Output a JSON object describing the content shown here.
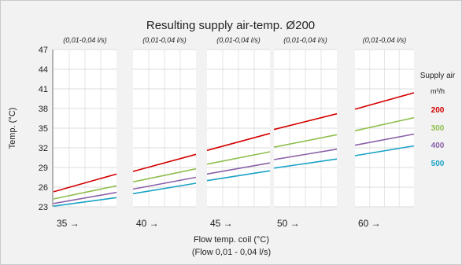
{
  "chart_data": {
    "type": "line",
    "title": "Resulting supply air-temp. Ø200",
    "ylabel": "Temp. (°C)",
    "xlabel": "Flow temp. coil (°C)",
    "xlabel_sub": "(Flow 0,01 - 0,04 l/s)",
    "ylim": [
      23,
      47
    ],
    "yticks": [
      "23",
      "26",
      "29",
      "32",
      "35",
      "38",
      "41",
      "44",
      "47"
    ],
    "legend": {
      "title_line1": "Supply air",
      "title_line2": "m³/h",
      "placement": "right"
    },
    "grid": true,
    "panels": [
      {
        "flow_label": "35 →",
        "range_label": "(0,01-0,04 l/s)",
        "series": [
          {
            "name": "200",
            "color": "#d40000",
            "values": [
              25.3,
              28.0
            ]
          },
          {
            "name": "300",
            "color": "#8fbf4f",
            "values": [
              24.2,
              26.2
            ]
          },
          {
            "name": "400",
            "color": "#8b62a8",
            "values": [
              23.5,
              25.2
            ]
          },
          {
            "name": "500",
            "color": "#1aa3c6",
            "values": [
              23.1,
              24.4
            ]
          }
        ]
      },
      {
        "flow_label": "40 →",
        "range_label": "(0,01-0,04 l/s)",
        "series": [
          {
            "name": "200",
            "color": "#d40000",
            "values": [
              28.4,
              31.0
            ]
          },
          {
            "name": "300",
            "color": "#8fbf4f",
            "values": [
              26.8,
              28.8
            ]
          },
          {
            "name": "400",
            "color": "#8b62a8",
            "values": [
              25.7,
              27.5
            ]
          },
          {
            "name": "500",
            "color": "#1aa3c6",
            "values": [
              25.0,
              26.6
            ]
          }
        ]
      },
      {
        "flow_label": "45 →",
        "range_label": "(0,01-0,04 l/s)",
        "series": [
          {
            "name": "200",
            "color": "#d40000",
            "values": [
              31.6,
              34.2
            ]
          },
          {
            "name": "300",
            "color": "#8fbf4f",
            "values": [
              29.5,
              31.4
            ]
          },
          {
            "name": "400",
            "color": "#8b62a8",
            "values": [
              28.0,
              29.7
            ]
          },
          {
            "name": "500",
            "color": "#1aa3c6",
            "values": [
              27.0,
              28.5
            ]
          }
        ]
      },
      {
        "flow_label": "50 →",
        "range_label": "(0,01-0,04 l/s)",
        "series": [
          {
            "name": "200",
            "color": "#d40000",
            "values": [
              34.8,
              37.2
            ]
          },
          {
            "name": "300",
            "color": "#8fbf4f",
            "values": [
              32.1,
              34.0
            ]
          },
          {
            "name": "400",
            "color": "#8b62a8",
            "values": [
              30.2,
              31.8
            ]
          },
          {
            "name": "500",
            "color": "#1aa3c6",
            "values": [
              28.9,
              30.3
            ]
          }
        ]
      },
      {
        "flow_label": "60 →",
        "range_label": "(0,01-0,04 l/s)",
        "series": [
          {
            "name": "200",
            "color": "#d40000",
            "values": [
              37.9,
              40.4
            ]
          },
          {
            "name": "300",
            "color": "#8fbf4f",
            "values": [
              34.6,
              36.6
            ]
          },
          {
            "name": "400",
            "color": "#8b62a8",
            "values": [
              32.4,
              34.1
            ]
          },
          {
            "name": "500",
            "color": "#1aa3c6",
            "values": [
              30.8,
              32.3
            ]
          }
        ]
      }
    ]
  }
}
